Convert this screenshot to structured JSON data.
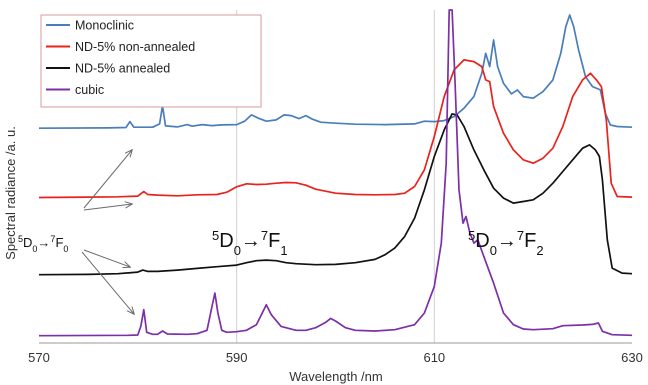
{
  "chart_data": {
    "type": "line",
    "xlabel": "Wavelength /nm",
    "ylabel": "Spectral radiance /a. u.",
    "xlim": [
      570,
      630
    ],
    "x_ticks": [
      570,
      590,
      610,
      630
    ],
    "ylim": [
      0,
      100
    ],
    "grid": "vertical",
    "legend_position": "top-left",
    "series": [
      {
        "name": "Monoclinic",
        "color": "#4a7ebb",
        "points": [
          [
            570,
            64.5
          ],
          [
            577,
            64.6
          ],
          [
            578.8,
            64.7
          ],
          [
            579.2,
            66.5
          ],
          [
            579.6,
            64.8
          ],
          [
            581.5,
            64.8
          ],
          [
            582.2,
            65.8
          ],
          [
            582.5,
            71.2
          ],
          [
            582.8,
            65.2
          ],
          [
            584,
            64.9
          ],
          [
            585,
            65.6
          ],
          [
            585.5,
            65.1
          ],
          [
            586.5,
            65.6
          ],
          [
            587.5,
            65.3
          ],
          [
            588.5,
            65.5
          ],
          [
            590,
            65.6
          ],
          [
            590.8,
            66.6
          ],
          [
            591.5,
            68.5
          ],
          [
            592.2,
            67.5
          ],
          [
            593,
            66.6
          ],
          [
            594,
            67
          ],
          [
            594.8,
            68.5
          ],
          [
            595.5,
            68.3
          ],
          [
            596.3,
            67.4
          ],
          [
            597,
            68.3
          ],
          [
            597.6,
            67.3
          ],
          [
            598.5,
            66.3
          ],
          [
            600,
            66
          ],
          [
            602,
            65.7
          ],
          [
            605,
            65.6
          ],
          [
            608,
            65.8
          ],
          [
            609,
            66.6
          ],
          [
            610,
            66.5
          ],
          [
            611,
            66.8
          ],
          [
            612,
            68
          ],
          [
            613,
            70.5
          ],
          [
            614,
            74
          ],
          [
            614.8,
            81
          ],
          [
            615.2,
            87
          ],
          [
            615.6,
            83
          ],
          [
            616,
            91
          ],
          [
            616.4,
            83
          ],
          [
            617,
            78
          ],
          [
            617.8,
            74.8
          ],
          [
            618.4,
            76
          ],
          [
            619,
            74
          ],
          [
            620,
            73.5
          ],
          [
            621,
            75.5
          ],
          [
            622,
            79
          ],
          [
            622.8,
            87
          ],
          [
            623.3,
            95
          ],
          [
            623.7,
            98.5
          ],
          [
            624.1,
            95
          ],
          [
            624.6,
            88
          ],
          [
            625.3,
            80
          ],
          [
            626,
            77
          ],
          [
            626.8,
            76
          ],
          [
            627.3,
            69
          ],
          [
            627.8,
            65.5
          ],
          [
            628.5,
            65
          ],
          [
            630,
            64.8
          ]
        ]
      },
      {
        "name": "ND-5% non-annealed",
        "color": "#e8231c",
        "points": [
          [
            570,
            43.7
          ],
          [
            575,
            43.8
          ],
          [
            578,
            43.9
          ],
          [
            580,
            44.1
          ],
          [
            580.6,
            45.5
          ],
          [
            581,
            44.6
          ],
          [
            582,
            44.4
          ],
          [
            584,
            44.2
          ],
          [
            586,
            44.5
          ],
          [
            588,
            44.6
          ],
          [
            589,
            45.3
          ],
          [
            590,
            46.9
          ],
          [
            591,
            47.8
          ],
          [
            592,
            47.6
          ],
          [
            593,
            47.7
          ],
          [
            594,
            48
          ],
          [
            595,
            48.2
          ],
          [
            596,
            48.1
          ],
          [
            597,
            47.4
          ],
          [
            598,
            46.2
          ],
          [
            600,
            45
          ],
          [
            602,
            44.6
          ],
          [
            604,
            44.5
          ],
          [
            606,
            44.6
          ],
          [
            607,
            45
          ],
          [
            608,
            47
          ],
          [
            609,
            52
          ],
          [
            610,
            62
          ],
          [
            611,
            74
          ],
          [
            612,
            82
          ],
          [
            613,
            85
          ],
          [
            614,
            84.5
          ],
          [
            614.8,
            83
          ],
          [
            615.2,
            79
          ],
          [
            615.6,
            78.5
          ],
          [
            616,
            71
          ],
          [
            617,
            63
          ],
          [
            618,
            58
          ],
          [
            619,
            55
          ],
          [
            620,
            54
          ],
          [
            621,
            55.5
          ],
          [
            622,
            58.5
          ],
          [
            623,
            65
          ],
          [
            624,
            74
          ],
          [
            625,
            79
          ],
          [
            625.8,
            81
          ],
          [
            626.4,
            79
          ],
          [
            626.9,
            77
          ],
          [
            627.4,
            67
          ],
          [
            627.9,
            48
          ],
          [
            628.5,
            44
          ],
          [
            630,
            43.8
          ]
        ]
      },
      {
        "name": "ND-5% annealed",
        "color": "#111111",
        "points": [
          [
            570,
            20.5
          ],
          [
            575,
            20.6
          ],
          [
            578,
            20.8
          ],
          [
            580,
            21.3
          ],
          [
            580.5,
            21.9
          ],
          [
            581,
            21.5
          ],
          [
            582,
            21.5
          ],
          [
            584,
            21.9
          ],
          [
            586,
            22.4
          ],
          [
            588,
            22.9
          ],
          [
            590,
            23.4
          ],
          [
            591,
            24.1
          ],
          [
            592,
            24.7
          ],
          [
            593,
            24.9
          ],
          [
            594,
            24.7
          ],
          [
            595,
            24.1
          ],
          [
            596,
            23.8
          ],
          [
            598,
            23.5
          ],
          [
            600,
            23.6
          ],
          [
            602,
            24.1
          ],
          [
            604,
            25.1
          ],
          [
            605,
            26.5
          ],
          [
            606,
            28.5
          ],
          [
            607,
            32
          ],
          [
            608,
            37.5
          ],
          [
            609,
            46
          ],
          [
            610,
            56
          ],
          [
            611,
            64
          ],
          [
            611.8,
            68.8
          ],
          [
            612.3,
            68.5
          ],
          [
            613,
            65
          ],
          [
            614,
            58
          ],
          [
            615,
            52
          ],
          [
            616,
            46.5
          ],
          [
            617,
            43.5
          ],
          [
            618,
            42
          ],
          [
            619,
            42.5
          ],
          [
            620,
            43
          ],
          [
            621,
            45
          ],
          [
            622,
            48
          ],
          [
            623,
            51.5
          ],
          [
            624,
            55
          ],
          [
            625,
            58.5
          ],
          [
            625.7,
            59.5
          ],
          [
            626.3,
            58
          ],
          [
            626.7,
            56
          ],
          [
            627,
            49
          ],
          [
            627.5,
            31
          ],
          [
            628,
            22.5
          ],
          [
            629,
            21
          ],
          [
            630,
            20.8
          ]
        ]
      },
      {
        "name": "cubic",
        "color": "#7b2fa8",
        "points": [
          [
            570,
            2.2
          ],
          [
            579,
            2.3
          ],
          [
            580,
            2.4
          ],
          [
            580.3,
            5
          ],
          [
            580.6,
            10
          ],
          [
            580.9,
            3.2
          ],
          [
            581.5,
            2.6
          ],
          [
            582,
            2.6
          ],
          [
            582.5,
            3.6
          ],
          [
            583,
            2.7
          ],
          [
            585,
            2.6
          ],
          [
            586,
            2.8
          ],
          [
            587,
            3.8
          ],
          [
            587.5,
            11
          ],
          [
            587.8,
            15
          ],
          [
            588.1,
            9
          ],
          [
            588.5,
            3.8
          ],
          [
            589,
            3.2
          ],
          [
            590,
            3.4
          ],
          [
            591,
            3.8
          ],
          [
            592,
            5.5
          ],
          [
            592.5,
            8.5
          ],
          [
            593,
            11.5
          ],
          [
            593.5,
            8.5
          ],
          [
            594.5,
            5
          ],
          [
            596,
            3.8
          ],
          [
            597,
            3.8
          ],
          [
            598,
            4.6
          ],
          [
            599,
            6.2
          ],
          [
            599.5,
            7.4
          ],
          [
            600,
            6.6
          ],
          [
            601,
            4.6
          ],
          [
            602,
            3.8
          ],
          [
            604,
            3.6
          ],
          [
            606,
            4
          ],
          [
            608,
            5.5
          ],
          [
            609,
            9
          ],
          [
            610,
            17
          ],
          [
            610.7,
            30
          ],
          [
            611.2,
            54
          ],
          [
            611.5,
            100
          ],
          [
            611.8,
            100
          ],
          [
            612.1,
            78
          ],
          [
            612.5,
            46
          ],
          [
            612.9,
            36
          ],
          [
            613.2,
            38
          ],
          [
            613.6,
            33
          ],
          [
            614,
            30
          ],
          [
            614.4,
            31
          ],
          [
            615,
            26
          ],
          [
            616,
            18
          ],
          [
            617,
            9
          ],
          [
            618,
            5.5
          ],
          [
            619,
            4.2
          ],
          [
            620,
            4
          ],
          [
            622,
            4.3
          ],
          [
            623,
            5.2
          ],
          [
            625,
            5.4
          ],
          [
            626,
            5.6
          ],
          [
            626.6,
            6
          ],
          [
            627,
            3.5
          ],
          [
            628,
            2.5
          ],
          [
            630,
            2.3
          ]
        ]
      }
    ],
    "annotations": {
      "left_label": {
        "base": "5",
        "main1": "D",
        "sub1": "0",
        "arrow": "→",
        "sup2": "7",
        "main2": "F",
        "sub2": "0"
      },
      "mid_label": {
        "base": "5",
        "main1": "D",
        "sub1": "0",
        "arrow": "→",
        "sup2": "7",
        "main2": "F",
        "sub2": "1"
      },
      "right_label": {
        "base": "5",
        "main1": "D",
        "sub1": "0",
        "arrow": "→",
        "sup2": "7",
        "main2": "F",
        "sub2": "2"
      }
    }
  }
}
